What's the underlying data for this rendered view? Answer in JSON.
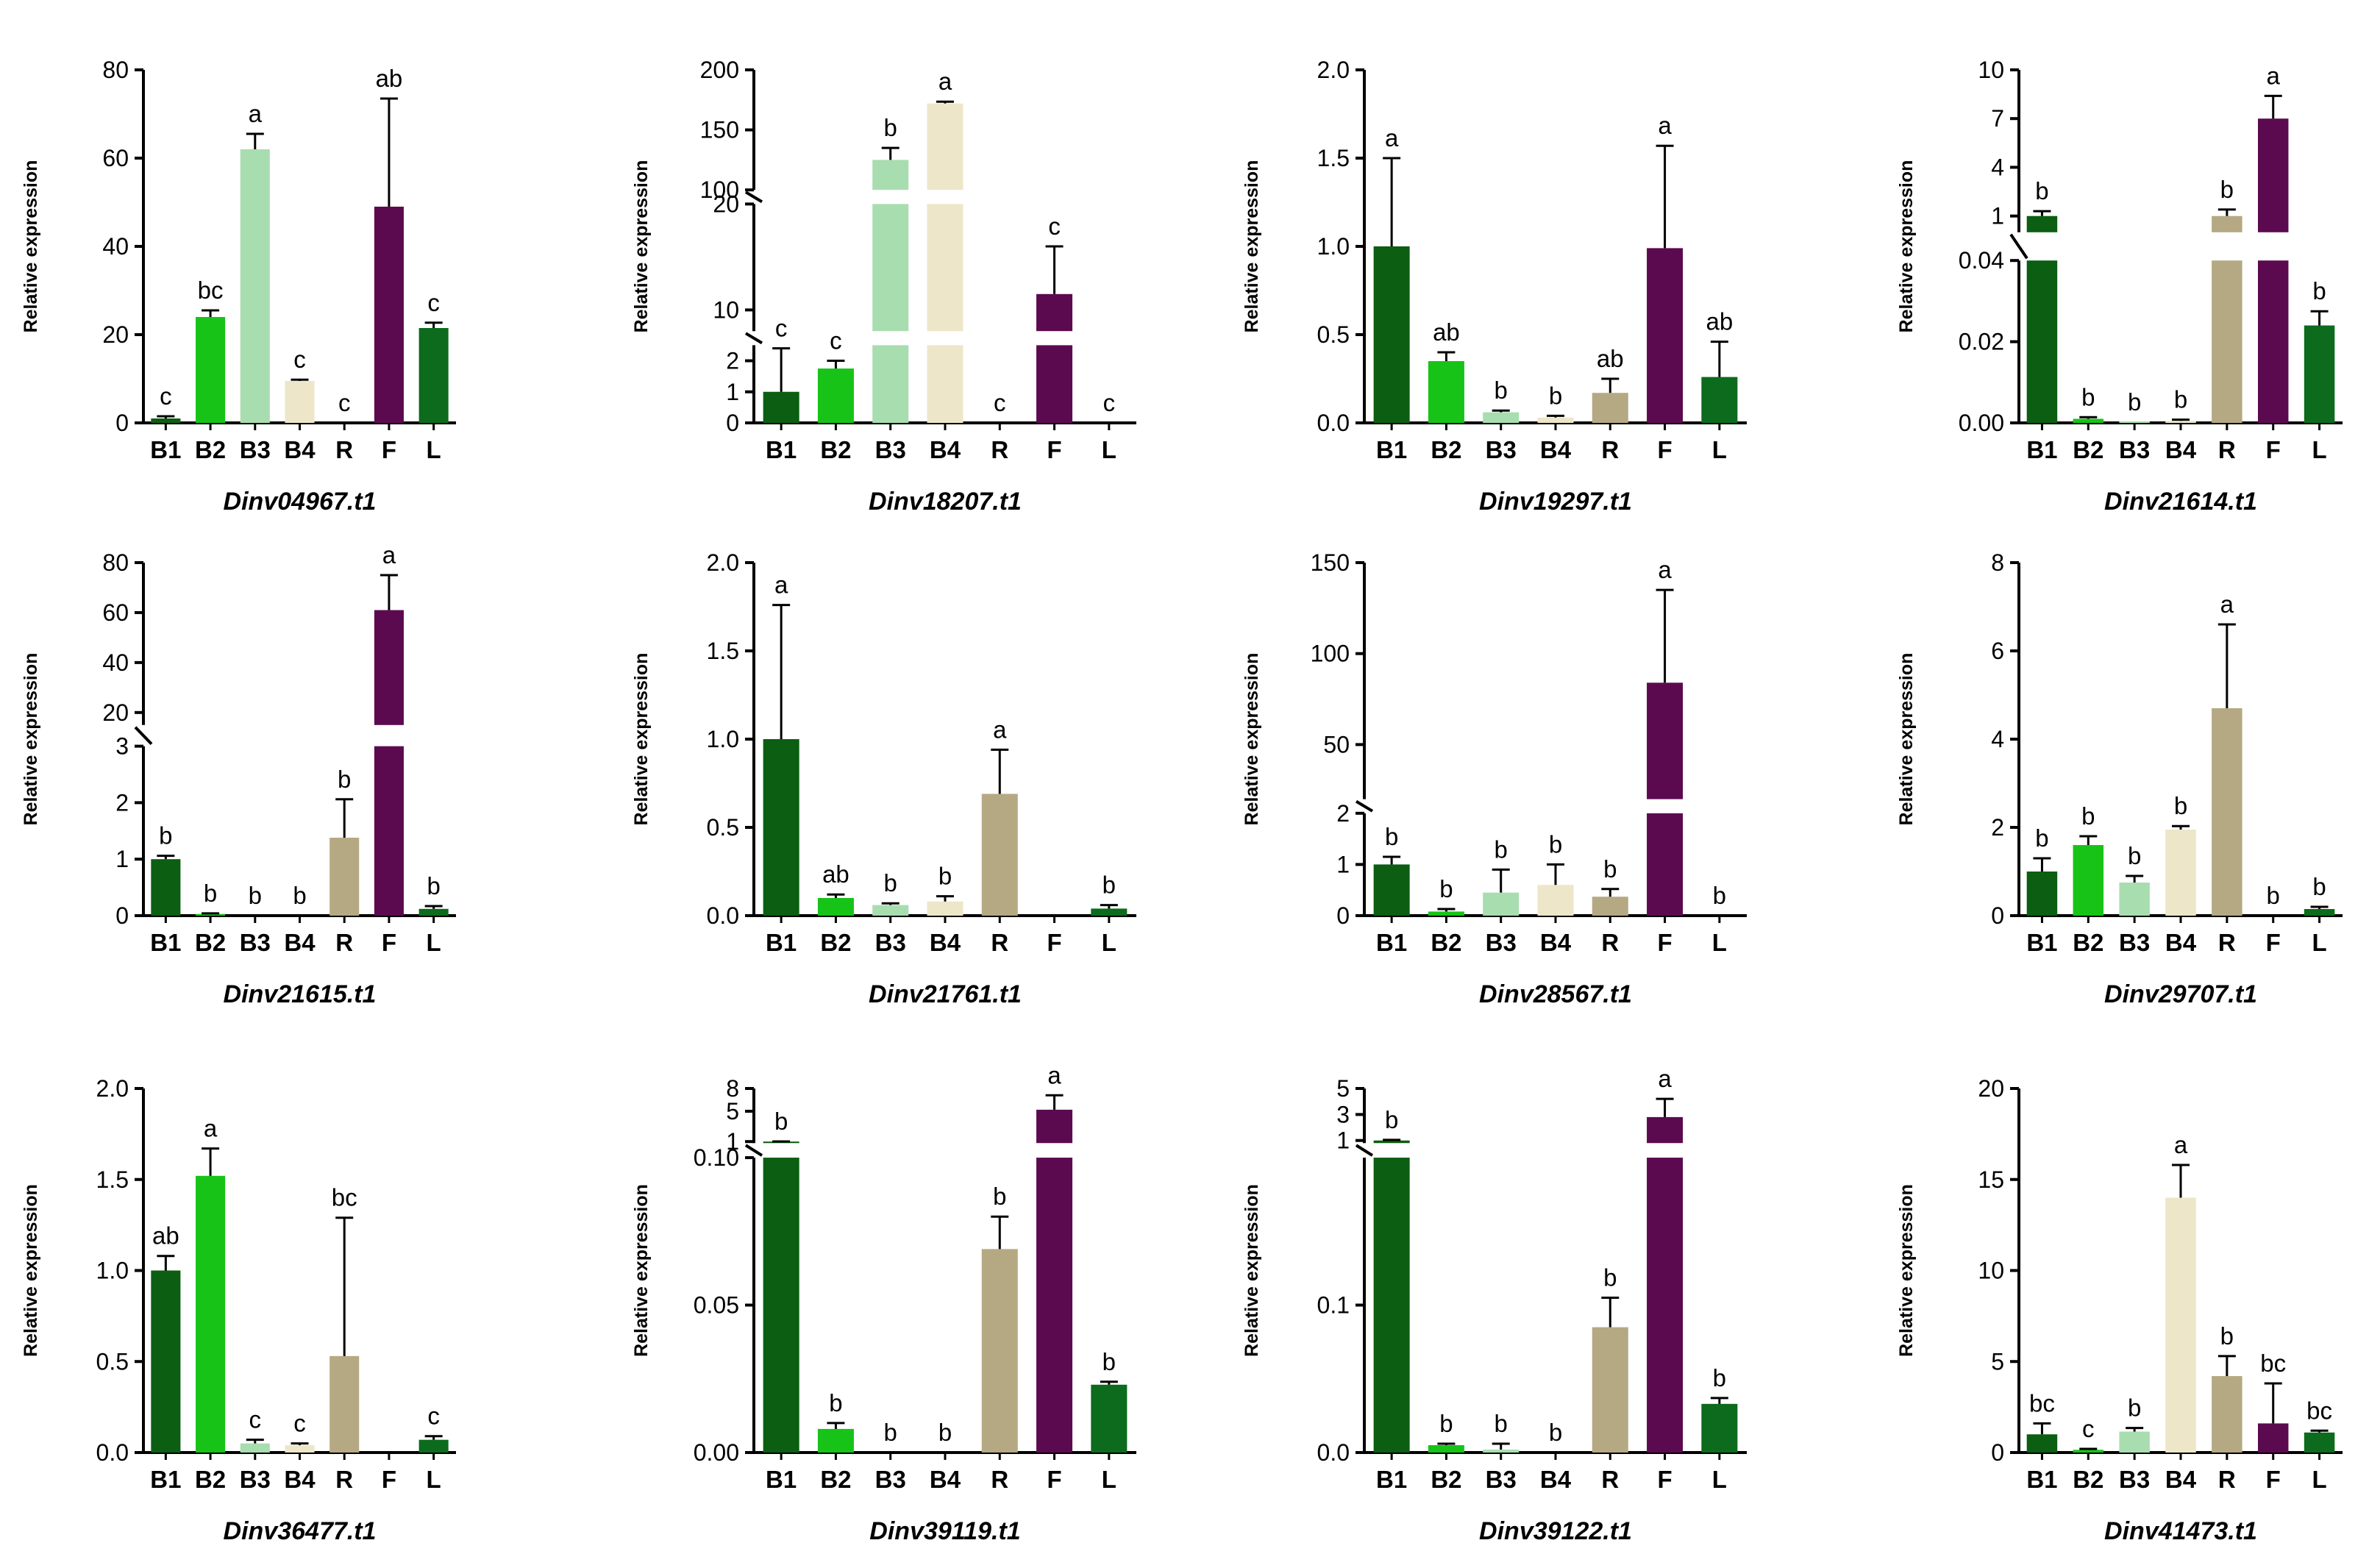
{
  "colors": {
    "B1": "#0b5e12",
    "B2": "#17c317",
    "B3": "#a8ddb0",
    "B4": "#ede6c8",
    "R": "#b5a983",
    "F": "#5c0a4f",
    "L": "#0c6b1c",
    "axis": "#000000"
  },
  "chart_data": [
    {
      "type": "bar",
      "title": "Dinv04967.t1",
      "ylabel": "Relative expression",
      "categories": [
        "B1",
        "B2",
        "B3",
        "B4",
        "R",
        "F",
        "L"
      ],
      "values": [
        1.0,
        24.0,
        62.0,
        9.5,
        0.0,
        49.0,
        21.5
      ],
      "errors": [
        0.5,
        1.5,
        3.5,
        0.3,
        0.0,
        24.5,
        1.2
      ],
      "letters": [
        "c",
        "bc",
        "a",
        "c",
        "c",
        "ab",
        "c"
      ],
      "axis": {
        "segments": [
          {
            "lo": 0,
            "hi": 80,
            "ticks": [
              0,
              20,
              40,
              60,
              80
            ]
          }
        ]
      }
    },
    {
      "type": "bar",
      "title": "Dinv18207.t1",
      "ylabel": "Relative expression",
      "categories": [
        "B1",
        "B2",
        "B3",
        "B4",
        "R",
        "F",
        "L"
      ],
      "values": [
        1.0,
        1.75,
        125,
        172,
        0.0,
        11.5,
        0.0
      ],
      "errors": [
        1.4,
        0.25,
        10,
        1.5,
        0.0,
        4.5,
        0.0
      ],
      "letters": [
        "c",
        "c",
        "b",
        "a",
        "c",
        "c",
        "c"
      ],
      "axis": {
        "segments": [
          {
            "lo": 0,
            "hi": 2.5,
            "ticks": [
              0,
              1,
              2
            ]
          },
          {
            "lo": 8,
            "hi": 20,
            "ticks": [
              10,
              20
            ]
          },
          {
            "lo": 100,
            "hi": 200,
            "ticks": [
              100,
              150,
              200
            ]
          }
        ]
      }
    },
    {
      "type": "bar",
      "title": "Dinv19297.t1",
      "ylabel": "Relative expression",
      "categories": [
        "B1",
        "B2",
        "B3",
        "B4",
        "R",
        "F",
        "L"
      ],
      "values": [
        1.0,
        0.35,
        0.06,
        0.03,
        0.17,
        0.99,
        0.26
      ],
      "errors": [
        0.5,
        0.05,
        0.01,
        0.01,
        0.08,
        0.58,
        0.2
      ],
      "letters": [
        "a",
        "ab",
        "b",
        "b",
        "ab",
        "a",
        "ab"
      ],
      "axis": {
        "segments": [
          {
            "lo": 0,
            "hi": 2.0,
            "ticks": [
              "0.0",
              "0.5",
              "1.0",
              "1.5",
              "2.0"
            ]
          }
        ]
      }
    },
    {
      "type": "bar",
      "title": "Dinv21614.t1",
      "ylabel": "Relative expression",
      "categories": [
        "B1",
        "B2",
        "B3",
        "B4",
        "R",
        "F",
        "L"
      ],
      "values": [
        1.0,
        0.001,
        0.0002,
        0.0005,
        1.0,
        7.0,
        0.024
      ],
      "errors": [
        0.3,
        0.0004,
        0.0,
        0.0003,
        0.4,
        1.4,
        0.0035
      ],
      "letters": [
        "b",
        "b",
        "b",
        "b",
        "b",
        "a",
        "b"
      ],
      "axis": {
        "segments": [
          {
            "lo": 0,
            "hi": 0.04,
            "ticks": [
              "0.00",
              "0.02",
              "0.04"
            ]
          },
          {
            "lo": 0,
            "hi": 10,
            "ticks": [
              1,
              4,
              7,
              10
            ]
          }
        ]
      }
    },
    {
      "type": "bar",
      "title": "Dinv21615.t1",
      "ylabel": "Relative expression",
      "categories": [
        "B1",
        "B2",
        "B3",
        "B4",
        "R",
        "F",
        "L"
      ],
      "values": [
        1.0,
        0.03,
        0.0,
        0.0,
        1.38,
        61,
        0.12
      ],
      "errors": [
        0.06,
        0.01,
        0.0,
        0.0,
        0.68,
        14,
        0.05
      ],
      "letters": [
        "b",
        "b",
        "b",
        "b",
        "b",
        "a",
        "b"
      ],
      "axis": {
        "segments": [
          {
            "lo": 0,
            "hi": 3,
            "ticks": [
              0,
              1,
              2,
              3
            ]
          },
          {
            "lo": 15,
            "hi": 80,
            "ticks": [
              20,
              40,
              60,
              80
            ]
          }
        ]
      }
    },
    {
      "type": "bar",
      "title": "Dinv21761.t1",
      "ylabel": "Relative expression",
      "categories": [
        "B1",
        "B2",
        "B3",
        "B4",
        "R",
        "F",
        "L"
      ],
      "values": [
        1.0,
        0.1,
        0.06,
        0.08,
        0.69,
        0.0,
        0.04
      ],
      "errors": [
        0.76,
        0.02,
        0.01,
        0.03,
        0.25,
        0.0,
        0.02
      ],
      "letters": [
        "a",
        "ab",
        "b",
        "b",
        "a",
        "",
        "b"
      ],
      "axis": {
        "segments": [
          {
            "lo": 0,
            "hi": 2.0,
            "ticks": [
              "0.0",
              "0.5",
              "1.0",
              "1.5",
              "2.0"
            ]
          }
        ]
      }
    },
    {
      "type": "bar",
      "title": "Dinv28567.t1",
      "ylabel": "Relative expression",
      "categories": [
        "B1",
        "B2",
        "B3",
        "B4",
        "R",
        "F",
        "L"
      ],
      "values": [
        1.0,
        0.08,
        0.45,
        0.6,
        0.37,
        84,
        0.0
      ],
      "errors": [
        0.15,
        0.05,
        0.45,
        0.4,
        0.15,
        51,
        0.0
      ],
      "letters": [
        "b",
        "b",
        "b",
        "b",
        "b",
        "a",
        "b"
      ],
      "axis": {
        "segments": [
          {
            "lo": 0,
            "hi": 2,
            "ticks": [
              0,
              1,
              2
            ]
          },
          {
            "lo": 20,
            "hi": 150,
            "ticks": [
              50,
              100,
              150
            ]
          }
        ]
      }
    },
    {
      "type": "bar",
      "title": "Dinv29707.t1",
      "ylabel": "Relative expression",
      "categories": [
        "B1",
        "B2",
        "B3",
        "B4",
        "R",
        "F",
        "L"
      ],
      "values": [
        1.0,
        1.6,
        0.75,
        1.95,
        4.7,
        0.0,
        0.15
      ],
      "errors": [
        0.3,
        0.2,
        0.15,
        0.08,
        1.9,
        0.0,
        0.05
      ],
      "letters": [
        "b",
        "b",
        "b",
        "b",
        "a",
        "b",
        "b"
      ],
      "axis": {
        "segments": [
          {
            "lo": 0,
            "hi": 8,
            "ticks": [
              0,
              2,
              4,
              6,
              8
            ]
          }
        ]
      }
    },
    {
      "type": "bar",
      "title": "Dinv36477.t1",
      "ylabel": "Relative expression",
      "categories": [
        "B1",
        "B2",
        "B3",
        "B4",
        "R",
        "F",
        "L"
      ],
      "values": [
        1.0,
        1.52,
        0.05,
        0.04,
        0.53,
        0.0,
        0.07
      ],
      "errors": [
        0.08,
        0.15,
        0.02,
        0.01,
        0.76,
        0.0,
        0.02
      ],
      "letters": [
        "ab",
        "a",
        "c",
        "c",
        "bc",
        "",
        "c"
      ],
      "axis": {
        "segments": [
          {
            "lo": 0,
            "hi": 2.0,
            "ticks": [
              "0.0",
              "0.5",
              "1.0",
              "1.5",
              "2.0"
            ]
          }
        ]
      }
    },
    {
      "type": "bar",
      "title": "Dinv39119.t1",
      "ylabel": "Relative expression",
      "categories": [
        "B1",
        "B2",
        "B3",
        "B4",
        "R",
        "F",
        "L"
      ],
      "values": [
        1.0,
        0.008,
        0.0,
        0.0,
        0.069,
        5.2,
        0.023
      ],
      "errors": [
        0.02,
        0.002,
        0.0,
        0.0,
        0.011,
        1.9,
        0.001
      ],
      "letters": [
        "b",
        "b",
        "b",
        "b",
        "b",
        "a",
        "b"
      ],
      "axis": {
        "segments": [
          {
            "lo": 0,
            "hi": 0.1,
            "ticks": [
              "0.00",
              "0.05",
              "0.10"
            ]
          },
          {
            "lo": 0.8,
            "hi": 8,
            "ticks": [
              1,
              5,
              8
            ]
          }
        ]
      }
    },
    {
      "type": "bar",
      "title": "Dinv39122.t1",
      "ylabel": "Relative expression",
      "categories": [
        "B1",
        "B2",
        "B3",
        "B4",
        "R",
        "F",
        "L"
      ],
      "values": [
        1.0,
        0.005,
        0.002,
        0.0,
        0.085,
        2.8,
        0.033
      ],
      "errors": [
        0.05,
        0.001,
        0.004,
        0.0,
        0.02,
        1.4,
        0.004
      ],
      "letters": [
        "b",
        "b",
        "b",
        "b",
        "b",
        "a",
        "b"
      ],
      "axis": {
        "segments": [
          {
            "lo": 0,
            "hi": 0.2,
            "ticks": [
              "0.0",
              "0.1"
            ]
          },
          {
            "lo": 0.8,
            "hi": 5,
            "ticks": [
              1,
              3,
              5
            ]
          }
        ]
      }
    },
    {
      "type": "bar",
      "title": "Dinv41473.t1",
      "ylabel": "Relative expression",
      "categories": [
        "B1",
        "B2",
        "B3",
        "B4",
        "R",
        "F",
        "L"
      ],
      "values": [
        1.0,
        0.15,
        1.15,
        14.0,
        4.2,
        1.6,
        1.1
      ],
      "errors": [
        0.6,
        0.05,
        0.2,
        1.8,
        1.1,
        2.2,
        0.1
      ],
      "letters": [
        "bc",
        "c",
        "b",
        "a",
        "b",
        "bc",
        "bc"
      ],
      "axis": {
        "segments": [
          {
            "lo": 0,
            "hi": 20,
            "ticks": [
              0,
              5,
              10,
              15,
              20
            ]
          }
        ]
      }
    }
  ]
}
